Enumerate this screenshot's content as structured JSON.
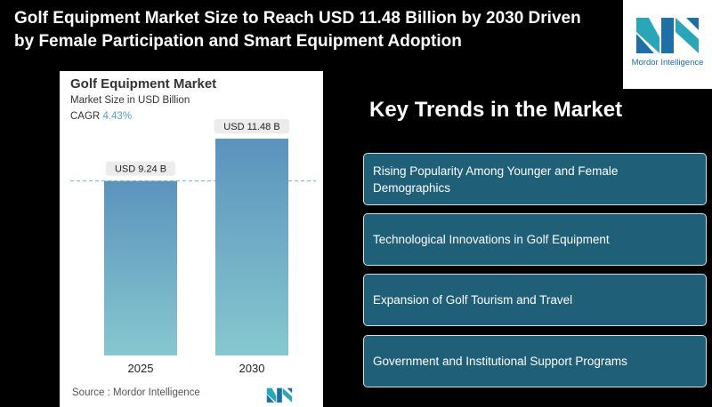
{
  "headline": "Golf Equipment Market Size to Reach USD 11.48 Billion by 2030 Driven by Female Participation and Smart Equipment Adoption",
  "brand": {
    "logo_text": "Mordor Intelligence",
    "color": "#1a6fa5"
  },
  "chart_card": {
    "title": "Golf Equipment Market",
    "subtitle": "Market Size in USD Billion",
    "cagr_label": "CAGR",
    "cagr_value": "4.43%",
    "source": "Source : Mordor Intelligence"
  },
  "chart_data": {
    "type": "bar",
    "title": "Golf Equipment Market",
    "ylabel": "Market Size in USD Billion",
    "categories": [
      "2025",
      "2030"
    ],
    "values": [
      9.24,
      11.48
    ],
    "data_labels": [
      "USD 9.24 B",
      "USD 11.48 B"
    ],
    "ylim": [
      0,
      12
    ],
    "reference_line": 9.24,
    "grid": false,
    "colors": {
      "bar_top": "#5b93bd",
      "bar_bottom": "#86c8cf",
      "ref_line": "#6fb7bd"
    }
  },
  "trends": {
    "title": "Key Trends in the Market",
    "items": [
      "Rising Popularity Among Younger and Female Demographics",
      "Technological Innovations in Golf Equipment",
      "Expansion of Golf Tourism and Travel",
      "Government and Institutional Support Programs"
    ]
  }
}
